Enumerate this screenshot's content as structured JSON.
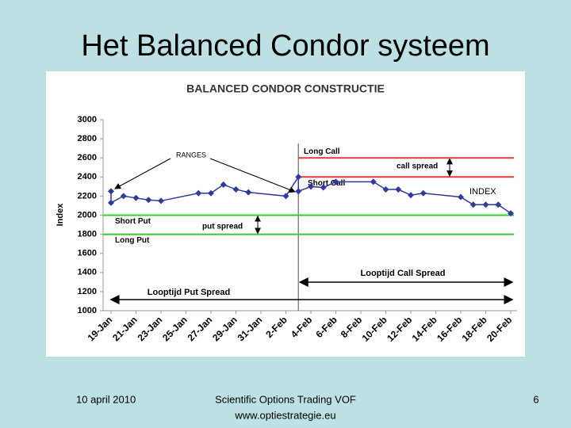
{
  "slide": {
    "title": "Het Balanced Condor systeem",
    "date": "10 april 2010",
    "company": "Scientific Options Trading VOF",
    "website": "www.optiestrategie.eu",
    "page": "6"
  },
  "chart_data": {
    "type": "line",
    "title": "BALANCED CONDOR CONSTRUCTIE",
    "y_label": "Index",
    "ylim": [
      1000,
      3000
    ],
    "yticks": [
      1000,
      1200,
      1400,
      1600,
      1800,
      2000,
      2200,
      2400,
      2600,
      2800,
      3000
    ],
    "xlim": [
      "19-Jan",
      "20-Feb"
    ],
    "xticks": [
      "19-Jan",
      "21-Jan",
      "23-Jan",
      "25-Jan",
      "27-Jan",
      "29-Jan",
      "31-Jan",
      "2-Feb",
      "4-Feb",
      "6-Feb",
      "8-Feb",
      "10-Feb",
      "12-Feb",
      "14-Feb",
      "16-Feb",
      "18-Feb",
      "20-Feb"
    ],
    "series": [
      {
        "name": "INDEX",
        "color": "#2e3a9e",
        "x": [
          "19-Jan",
          "19-Jan",
          "20-Jan",
          "21-Jan",
          "22-Jan",
          "23-Jan",
          "26-Jan",
          "27-Jan",
          "28-Jan",
          "29-Jan",
          "30-Jan",
          "2-Feb",
          "3-Feb",
          "3-Feb",
          "4-Feb",
          "5-Feb",
          "6-Feb",
          "9-Feb",
          "10-Feb",
          "11-Feb",
          "12-Feb",
          "13-Feb",
          "16-Feb",
          "17-Feb",
          "18-Feb",
          "19-Feb",
          "20-Feb"
        ],
        "values": [
          2250,
          2130,
          2200,
          2180,
          2160,
          2150,
          2230,
          2230,
          2320,
          2270,
          2240,
          2200,
          2400,
          2250,
          2300,
          2290,
          2350,
          2350,
          2270,
          2270,
          2210,
          2230,
          2190,
          2110,
          2110,
          2110,
          2020
        ]
      }
    ],
    "levels": [
      {
        "name": "Long Call",
        "value": 2600,
        "color": "#e03a3a",
        "from": "3-Feb"
      },
      {
        "name": "Short Call",
        "value": 2400,
        "color": "#e03a3a",
        "from": "3-Feb"
      },
      {
        "name": "Short Put",
        "value": 2000,
        "color": "#33cc33",
        "from": "19-Jan"
      },
      {
        "name": "Long Put",
        "value": 1800,
        "color": "#33cc33",
        "from": "19-Jan"
      }
    ],
    "divider": "3-Feb",
    "annotations": [
      "RANGES",
      "call spread",
      "put spread",
      "Looptijd Call Spread",
      "Looptijd Put Spread"
    ]
  }
}
